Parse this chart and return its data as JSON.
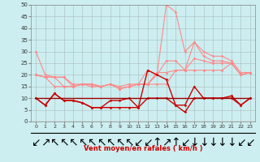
{
  "xlabel": "Vent moyen/en rafales ( km/h )",
  "background_color": "#cceef0",
  "grid_color": "#aabbbb",
  "xlim": [
    -0.5,
    23.5
  ],
  "ylim": [
    0,
    50
  ],
  "yticks": [
    0,
    5,
    10,
    15,
    20,
    25,
    30,
    35,
    40,
    45,
    50
  ],
  "xticks": [
    0,
    1,
    2,
    3,
    4,
    5,
    6,
    7,
    8,
    9,
    10,
    11,
    12,
    13,
    14,
    15,
    16,
    17,
    18,
    19,
    20,
    21,
    22,
    23
  ],
  "series": [
    {
      "name": "rafales_max",
      "color": "#ff8888",
      "linewidth": 0.8,
      "marker": "D",
      "markersize": 1.5,
      "values": [
        30,
        20,
        19,
        19,
        16,
        16,
        15,
        15,
        16,
        15,
        16,
        16,
        22,
        20,
        50,
        47,
        30,
        34,
        30,
        28,
        28,
        26,
        21,
        21
      ]
    },
    {
      "name": "moyen_max",
      "color": "#ff8888",
      "linewidth": 0.8,
      "marker": "D",
      "markersize": 1.5,
      "values": [
        20,
        19,
        19,
        19,
        15,
        16,
        16,
        15,
        16,
        14,
        15,
        16,
        16,
        20,
        26,
        26,
        22,
        34,
        28,
        26,
        26,
        25,
        20,
        21
      ]
    },
    {
      "name": "vent_moyen_line1",
      "color": "#ff8888",
      "linewidth": 0.8,
      "marker": "D",
      "markersize": 1.5,
      "values": [
        20,
        19,
        19,
        15,
        15,
        16,
        16,
        15,
        16,
        14,
        15,
        16,
        16,
        21,
        21,
        22,
        22,
        27,
        26,
        25,
        25,
        25,
        20,
        21
      ]
    },
    {
      "name": "vent_moyen_line2",
      "color": "#ff8888",
      "linewidth": 0.8,
      "marker": "D",
      "markersize": 1.5,
      "values": [
        20,
        19,
        15,
        15,
        15,
        16,
        16,
        15,
        16,
        14,
        15,
        16,
        16,
        16,
        16,
        22,
        22,
        22,
        22,
        22,
        22,
        25,
        20,
        21
      ]
    },
    {
      "name": "vent_moyen_dark1",
      "color": "#cc0000",
      "linewidth": 1.0,
      "marker": "D",
      "markersize": 1.5,
      "values": [
        10,
        7,
        12,
        9,
        9,
        8,
        6,
        6,
        9,
        9,
        10,
        6,
        22,
        20,
        18,
        7,
        7,
        15,
        10,
        10,
        10,
        11,
        7,
        10
      ]
    },
    {
      "name": "vent_min_dark2",
      "color": "#cc0000",
      "linewidth": 1.0,
      "marker": "D",
      "markersize": 1.5,
      "values": [
        10,
        7,
        12,
        9,
        9,
        8,
        6,
        6,
        6,
        6,
        6,
        6,
        10,
        10,
        10,
        7,
        4,
        10,
        10,
        10,
        10,
        10,
        7,
        10
      ]
    },
    {
      "name": "vent_flat_dark",
      "color": "#990000",
      "linewidth": 1.0,
      "marker": null,
      "markersize": 0,
      "values": [
        10,
        10,
        10,
        10,
        10,
        10,
        10,
        10,
        10,
        10,
        10,
        10,
        10,
        10,
        10,
        10,
        10,
        10,
        10,
        10,
        10,
        10,
        10,
        10
      ]
    }
  ],
  "wind_arrows": {
    "symbols": [
      "↙",
      "↗",
      "↖",
      "↖",
      "↖",
      "↖",
      "↖",
      "↖",
      "↖",
      "↖",
      "↖",
      "↙",
      "↙",
      "↑",
      "↗",
      "↑",
      "↙",
      "↓",
      "↓",
      "↓",
      "↓",
      "↓",
      "↙",
      "↙"
    ]
  }
}
